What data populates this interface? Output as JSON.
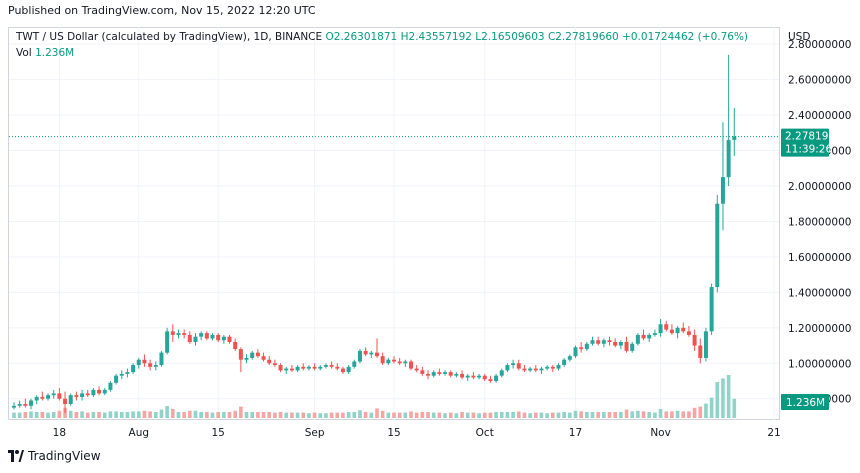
{
  "header": {
    "published": "Published on TradingView.com, Nov 15, 2022 12:20 UTC"
  },
  "legend": {
    "symbol": "TWT / US Dollar (calculated by TradingView), 1D, BINANCE",
    "open": "O2.26301871",
    "high": "H2.43557192",
    "low": "L2.16509603",
    "close": "C2.27819660",
    "change": "+0.01724462 (+0.76%)",
    "vol_label": "Vol",
    "vol_value": "1.236M"
  },
  "price_axis": {
    "currency": "USD",
    "ticks": [
      "2.80000000",
      "2.60000000",
      "2.40000000",
      "2.20000000",
      "2.00000000",
      "1.80000000",
      "1.60000000",
      "1.40000000",
      "1.20000000",
      "1.00000000",
      "0.80000000"
    ],
    "last_price": "2.27819660",
    "countdown": "11:39:26",
    "vol_badge": "1.236M"
  },
  "time_axis": {
    "labels": [
      "18",
      "Aug",
      "15",
      "Sep",
      "15",
      "Oct",
      "17",
      "Nov",
      "21"
    ]
  },
  "footer": {
    "brand": "TradingView"
  },
  "colors": {
    "up": "#26a69a",
    "down": "#ef5350",
    "up_vol": "#8fd3c9",
    "down_vol": "#f5a5a3",
    "price_line": "#089981"
  },
  "chart_data": {
    "type": "candlestick",
    "title": "TWT / US Dollar (calculated by TradingView), 1D, BINANCE",
    "ylabel": "USD",
    "ylim": [
      0.68,
      2.88
    ],
    "x_range": [
      "2022-07-10",
      "2022-11-21"
    ],
    "candles": [
      [
        "2022-07-10",
        0.75,
        0.78,
        0.74,
        0.76
      ],
      [
        "2022-07-11",
        0.76,
        0.79,
        0.75,
        0.77
      ],
      [
        "2022-07-12",
        0.77,
        0.8,
        0.75,
        0.76
      ],
      [
        "2022-07-13",
        0.76,
        0.8,
        0.74,
        0.79
      ],
      [
        "2022-07-14",
        0.79,
        0.82,
        0.77,
        0.81
      ],
      [
        "2022-07-15",
        0.81,
        0.84,
        0.79,
        0.8
      ],
      [
        "2022-07-16",
        0.8,
        0.83,
        0.79,
        0.82
      ],
      [
        "2022-07-17",
        0.82,
        0.85,
        0.8,
        0.83
      ],
      [
        "2022-07-18",
        0.83,
        0.86,
        0.79,
        0.8
      ],
      [
        "2022-07-19",
        0.8,
        0.84,
        0.72,
        0.77
      ],
      [
        "2022-07-20",
        0.77,
        0.83,
        0.76,
        0.82
      ],
      [
        "2022-07-21",
        0.82,
        0.84,
        0.79,
        0.81
      ],
      [
        "2022-07-22",
        0.81,
        0.85,
        0.79,
        0.83
      ],
      [
        "2022-07-23",
        0.83,
        0.85,
        0.81,
        0.82
      ],
      [
        "2022-07-24",
        0.82,
        0.86,
        0.81,
        0.85
      ],
      [
        "2022-07-25",
        0.85,
        0.87,
        0.82,
        0.83
      ],
      [
        "2022-07-26",
        0.83,
        0.86,
        0.82,
        0.85
      ],
      [
        "2022-07-27",
        0.85,
        0.9,
        0.84,
        0.89
      ],
      [
        "2022-07-28",
        0.89,
        0.94,
        0.88,
        0.93
      ],
      [
        "2022-07-29",
        0.93,
        0.96,
        0.91,
        0.94
      ],
      [
        "2022-07-30",
        0.94,
        0.97,
        0.92,
        0.95
      ],
      [
        "2022-07-31",
        0.95,
        1.0,
        0.94,
        0.99
      ],
      [
        "2022-08-01",
        0.99,
        1.03,
        0.97,
        1.02
      ],
      [
        "2022-08-02",
        1.02,
        1.05,
        0.98,
        1.0
      ],
      [
        "2022-08-03",
        1.0,
        1.02,
        0.96,
        0.98
      ],
      [
        "2022-08-04",
        0.98,
        1.01,
        0.96,
        0.99
      ],
      [
        "2022-08-05",
        0.99,
        1.07,
        0.98,
        1.06
      ],
      [
        "2022-08-06",
        1.06,
        1.2,
        1.05,
        1.18
      ],
      [
        "2022-08-07",
        1.18,
        1.22,
        1.12,
        1.16
      ],
      [
        "2022-08-08",
        1.16,
        1.19,
        1.14,
        1.17
      ],
      [
        "2022-08-09",
        1.17,
        1.19,
        1.14,
        1.16
      ],
      [
        "2022-08-10",
        1.16,
        1.18,
        1.11,
        1.12
      ],
      [
        "2022-08-11",
        1.12,
        1.17,
        1.1,
        1.15
      ],
      [
        "2022-08-12",
        1.15,
        1.18,
        1.13,
        1.17
      ],
      [
        "2022-08-13",
        1.17,
        1.18,
        1.13,
        1.14
      ],
      [
        "2022-08-14",
        1.14,
        1.17,
        1.13,
        1.16
      ],
      [
        "2022-08-15",
        1.16,
        1.17,
        1.12,
        1.13
      ],
      [
        "2022-08-16",
        1.13,
        1.16,
        1.11,
        1.15
      ],
      [
        "2022-08-17",
        1.15,
        1.16,
        1.11,
        1.12
      ],
      [
        "2022-08-18",
        1.12,
        1.14,
        1.07,
        1.08
      ],
      [
        "2022-08-19",
        1.08,
        1.09,
        0.95,
        1.02
      ],
      [
        "2022-08-20",
        1.02,
        1.05,
        1.0,
        1.03
      ],
      [
        "2022-08-21",
        1.03,
        1.07,
        1.02,
        1.06
      ],
      [
        "2022-08-22",
        1.06,
        1.08,
        1.03,
        1.04
      ],
      [
        "2022-08-23",
        1.04,
        1.06,
        1.01,
        1.02
      ],
      [
        "2022-08-24",
        1.02,
        1.04,
        0.99,
        1.0
      ],
      [
        "2022-08-25",
        1.0,
        1.02,
        0.98,
        0.99
      ],
      [
        "2022-08-26",
        0.99,
        1.0,
        0.95,
        0.96
      ],
      [
        "2022-08-27",
        0.96,
        0.98,
        0.94,
        0.97
      ],
      [
        "2022-08-28",
        0.97,
        0.99,
        0.95,
        0.96
      ],
      [
        "2022-08-29",
        0.96,
        0.99,
        0.95,
        0.98
      ],
      [
        "2022-08-30",
        0.98,
        1.0,
        0.96,
        0.97
      ],
      [
        "2022-08-31",
        0.97,
        0.99,
        0.96,
        0.98
      ],
      [
        "2022-09-01",
        0.98,
        1.0,
        0.96,
        0.97
      ],
      [
        "2022-09-02",
        0.97,
        0.99,
        0.96,
        0.98
      ],
      [
        "2022-09-03",
        0.98,
        1.0,
        0.97,
        0.99
      ],
      [
        "2022-09-04",
        0.99,
        1.01,
        0.97,
        0.98
      ],
      [
        "2022-09-05",
        0.98,
        1.0,
        0.96,
        0.97
      ],
      [
        "2022-09-06",
        0.97,
        0.98,
        0.94,
        0.95
      ],
      [
        "2022-09-07",
        0.95,
        0.99,
        0.94,
        0.98
      ],
      [
        "2022-09-08",
        0.98,
        1.02,
        0.97,
        1.01
      ],
      [
        "2022-09-09",
        1.01,
        1.08,
        1.0,
        1.07
      ],
      [
        "2022-09-10",
        1.07,
        1.09,
        1.04,
        1.05
      ],
      [
        "2022-09-11",
        1.05,
        1.07,
        1.03,
        1.06
      ],
      [
        "2022-09-12",
        1.06,
        1.14,
        1.03,
        1.04
      ],
      [
        "2022-09-13",
        1.04,
        1.06,
        0.99,
        1.0
      ],
      [
        "2022-09-14",
        1.0,
        1.03,
        0.99,
        1.02
      ],
      [
        "2022-09-15",
        1.02,
        1.04,
        1.0,
        1.01
      ],
      [
        "2022-09-16",
        1.01,
        1.03,
        0.99,
        1.0
      ],
      [
        "2022-09-17",
        1.0,
        1.02,
        0.98,
        1.01
      ],
      [
        "2022-09-18",
        1.01,
        1.02,
        0.96,
        0.97
      ],
      [
        "2022-09-19",
        0.97,
        0.99,
        0.95,
        0.96
      ],
      [
        "2022-09-20",
        0.96,
        0.98,
        0.93,
        0.94
      ],
      [
        "2022-09-21",
        0.94,
        0.96,
        0.91,
        0.93
      ],
      [
        "2022-09-22",
        0.93,
        0.96,
        0.92,
        0.95
      ],
      [
        "2022-09-23",
        0.95,
        0.97,
        0.93,
        0.94
      ],
      [
        "2022-09-24",
        0.94,
        0.96,
        0.93,
        0.95
      ],
      [
        "2022-09-25",
        0.95,
        0.96,
        0.92,
        0.93
      ],
      [
        "2022-09-26",
        0.93,
        0.95,
        0.92,
        0.94
      ],
      [
        "2022-09-27",
        0.94,
        0.96,
        0.91,
        0.92
      ],
      [
        "2022-09-28",
        0.92,
        0.94,
        0.9,
        0.93
      ],
      [
        "2022-09-29",
        0.93,
        0.95,
        0.91,
        0.92
      ],
      [
        "2022-09-30",
        0.92,
        0.94,
        0.91,
        0.93
      ],
      [
        "2022-10-01",
        0.93,
        0.94,
        0.9,
        0.91
      ],
      [
        "2022-10-02",
        0.91,
        0.93,
        0.89,
        0.9
      ],
      [
        "2022-10-03",
        0.9,
        0.94,
        0.89,
        0.93
      ],
      [
        "2022-10-04",
        0.93,
        0.97,
        0.92,
        0.96
      ],
      [
        "2022-10-05",
        0.96,
        1.0,
        0.95,
        0.99
      ],
      [
        "2022-10-06",
        0.99,
        1.02,
        0.97,
        1.0
      ],
      [
        "2022-10-07",
        1.0,
        1.02,
        0.96,
        0.97
      ],
      [
        "2022-10-08",
        0.97,
        0.99,
        0.95,
        0.96
      ],
      [
        "2022-10-09",
        0.96,
        0.98,
        0.95,
        0.97
      ],
      [
        "2022-10-10",
        0.97,
        0.99,
        0.95,
        0.96
      ],
      [
        "2022-10-11",
        0.96,
        0.98,
        0.94,
        0.97
      ],
      [
        "2022-10-12",
        0.97,
        0.99,
        0.96,
        0.98
      ],
      [
        "2022-10-13",
        0.98,
        0.99,
        0.95,
        0.97
      ],
      [
        "2022-10-14",
        0.97,
        1.0,
        0.96,
        0.99
      ],
      [
        "2022-10-15",
        0.99,
        1.03,
        0.98,
        1.02
      ],
      [
        "2022-10-16",
        1.02,
        1.05,
        1.01,
        1.04
      ],
      [
        "2022-10-17",
        1.04,
        1.1,
        1.03,
        1.09
      ],
      [
        "2022-10-18",
        1.09,
        1.12,
        1.06,
        1.08
      ],
      [
        "2022-10-19",
        1.08,
        1.12,
        1.07,
        1.11
      ],
      [
        "2022-10-20",
        1.11,
        1.15,
        1.1,
        1.13
      ],
      [
        "2022-10-21",
        1.13,
        1.15,
        1.1,
        1.11
      ],
      [
        "2022-10-22",
        1.11,
        1.14,
        1.09,
        1.13
      ],
      [
        "2022-10-23",
        1.13,
        1.15,
        1.1,
        1.12
      ],
      [
        "2022-10-24",
        1.12,
        1.14,
        1.09,
        1.1
      ],
      [
        "2022-10-25",
        1.1,
        1.13,
        1.08,
        1.12
      ],
      [
        "2022-10-26",
        1.12,
        1.15,
        1.06,
        1.07
      ],
      [
        "2022-10-27",
        1.07,
        1.12,
        1.06,
        1.11
      ],
      [
        "2022-10-28",
        1.11,
        1.17,
        1.1,
        1.16
      ],
      [
        "2022-10-29",
        1.16,
        1.19,
        1.13,
        1.14
      ],
      [
        "2022-10-30",
        1.14,
        1.17,
        1.12,
        1.16
      ],
      [
        "2022-10-31",
        1.16,
        1.19,
        1.15,
        1.17
      ],
      [
        "2022-11-01",
        1.17,
        1.25,
        1.15,
        1.22
      ],
      [
        "2022-11-02",
        1.22,
        1.24,
        1.18,
        1.19
      ],
      [
        "2022-11-03",
        1.19,
        1.22,
        1.16,
        1.17
      ],
      [
        "2022-11-04",
        1.17,
        1.21,
        1.14,
        1.2
      ],
      [
        "2022-11-05",
        1.2,
        1.23,
        1.17,
        1.18
      ],
      [
        "2022-11-06",
        1.18,
        1.21,
        1.15,
        1.16
      ],
      [
        "2022-11-07",
        1.16,
        1.19,
        1.07,
        1.1
      ],
      [
        "2022-11-08",
        1.1,
        1.14,
        1.0,
        1.03
      ],
      [
        "2022-11-09",
        1.03,
        1.2,
        1.01,
        1.18
      ],
      [
        "2022-11-10",
        1.18,
        1.45,
        1.16,
        1.43
      ],
      [
        "2022-11-11",
        1.43,
        1.95,
        1.4,
        1.9
      ],
      [
        "2022-11-12",
        1.9,
        2.36,
        1.75,
        2.05
      ],
      [
        "2022-11-13",
        2.05,
        2.74,
        2.0,
        2.26
      ],
      [
        "2022-11-14",
        2.26,
        2.44,
        2.17,
        2.28
      ]
    ],
    "volume_trend": "Small through July-October, with larger red (down) bars around Nov 7-8 and a very large green spike around Nov 12-13; last bar 1.236M."
  }
}
